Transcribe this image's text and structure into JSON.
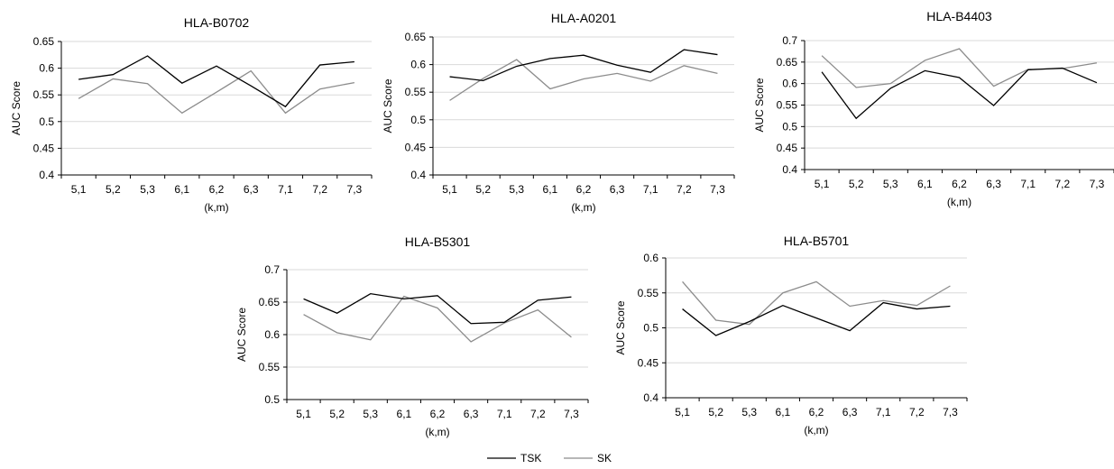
{
  "chart_data": [
    {
      "type": "line",
      "title": "HLA-B0702",
      "xlabel": "(k,m)",
      "ylabel": "AUC Score",
      "categories": [
        "5,1",
        "5,2",
        "5,3",
        "6,1",
        "6,2",
        "6,3",
        "7,1",
        "7,2",
        "7,3"
      ],
      "ylim": [
        0.4,
        0.65
      ],
      "yticks": [
        "0.4",
        "0.45",
        "0.5",
        "0.55",
        "0.6",
        "0.65"
      ],
      "grid": true,
      "series": [
        {
          "name": "TSK",
          "values": [
            0.579,
            0.588,
            0.623,
            0.572,
            0.604,
            0.567,
            0.528,
            0.606,
            0.612
          ]
        },
        {
          "name": "SK",
          "values": [
            0.543,
            0.58,
            0.571,
            0.516,
            0.555,
            0.595,
            0.516,
            0.561,
            0.573
          ]
        }
      ]
    },
    {
      "type": "line",
      "title": "HLA-A0201",
      "xlabel": "(k,m)",
      "ylabel": "AUC Score",
      "categories": [
        "5,1",
        "5,2",
        "5,3",
        "6,1",
        "6,2",
        "6,3",
        "7,1",
        "7,2",
        "7,3"
      ],
      "ylim": [
        0.4,
        0.65
      ],
      "yticks": [
        "0.4",
        "0.45",
        "0.5",
        "0.55",
        "0.6",
        "0.65"
      ],
      "grid": true,
      "series": [
        {
          "name": "TSK",
          "values": [
            0.578,
            0.571,
            0.597,
            0.611,
            0.617,
            0.599,
            0.586,
            0.627,
            0.618
          ]
        },
        {
          "name": "SK",
          "values": [
            0.535,
            0.575,
            0.609,
            0.556,
            0.574,
            0.584,
            0.57,
            0.598,
            0.584
          ]
        }
      ]
    },
    {
      "type": "line",
      "title": "HLA-B4403",
      "xlabel": "(k,m)",
      "ylabel": "AUC Score",
      "categories": [
        "5,1",
        "5,2",
        "5,3",
        "6,1",
        "6,2",
        "6,3",
        "7,1",
        "7,2",
        "7,3"
      ],
      "ylim": [
        0.4,
        0.7
      ],
      "yticks": [
        "0.4",
        "0.45",
        "0.5",
        "0.55",
        "0.6",
        "0.65",
        "0.7"
      ],
      "grid": true,
      "series": [
        {
          "name": "TSK",
          "values": [
            0.627,
            0.519,
            0.589,
            0.63,
            0.614,
            0.549,
            0.632,
            0.636,
            0.602
          ]
        },
        {
          "name": "SK",
          "values": [
            0.665,
            0.591,
            0.6,
            0.654,
            0.681,
            0.594,
            0.633,
            0.635,
            0.648
          ]
        }
      ]
    },
    {
      "type": "line",
      "title": "HLA-B5301",
      "xlabel": "(k,m)",
      "ylabel": "AUC Score",
      "categories": [
        "5,1",
        "5,2",
        "5,3",
        "6,1",
        "6,2",
        "6,3",
        "7,1",
        "7,2",
        "7,3"
      ],
      "ylim": [
        0.5,
        0.7
      ],
      "yticks": [
        "0.5",
        "0.55",
        "0.6",
        "0.65",
        "0.7"
      ],
      "grid": true,
      "series": [
        {
          "name": "TSK",
          "values": [
            0.655,
            0.633,
            0.663,
            0.655,
            0.66,
            0.617,
            0.619,
            0.653,
            0.658
          ]
        },
        {
          "name": "SK",
          "values": [
            0.631,
            0.603,
            0.592,
            0.659,
            0.641,
            0.589,
            0.618,
            0.638,
            0.596
          ]
        }
      ]
    },
    {
      "type": "line",
      "title": "HLA-B5701",
      "xlabel": "(k,m)",
      "ylabel": "AUC Score",
      "categories": [
        "5,1",
        "5,2",
        "5,3",
        "6,1",
        "6,2",
        "6,3",
        "7,1",
        "7,2",
        "7,3"
      ],
      "ylim": [
        0.4,
        0.6
      ],
      "yticks": [
        "0.4",
        "0.45",
        "0.5",
        "0.55",
        "0.6"
      ],
      "grid": true,
      "series": [
        {
          "name": "TSK",
          "values": [
            0.527,
            0.489,
            0.509,
            0.532,
            0.514,
            0.496,
            0.536,
            0.527,
            0.531
          ]
        },
        {
          "name": "SK",
          "values": [
            0.566,
            0.511,
            0.505,
            0.55,
            0.566,
            0.531,
            0.539,
            0.532,
            0.56
          ]
        }
      ]
    }
  ],
  "legend": {
    "placement": "bottom-center",
    "items": [
      {
        "label": "TSK",
        "color": "#000000"
      },
      {
        "label": "SK",
        "color": "#8c8c8c"
      }
    ]
  },
  "colors": {
    "TSK": "#000000",
    "SK": "#8c8c8c",
    "grid": "#d9d9d9",
    "axis": "#000000"
  }
}
